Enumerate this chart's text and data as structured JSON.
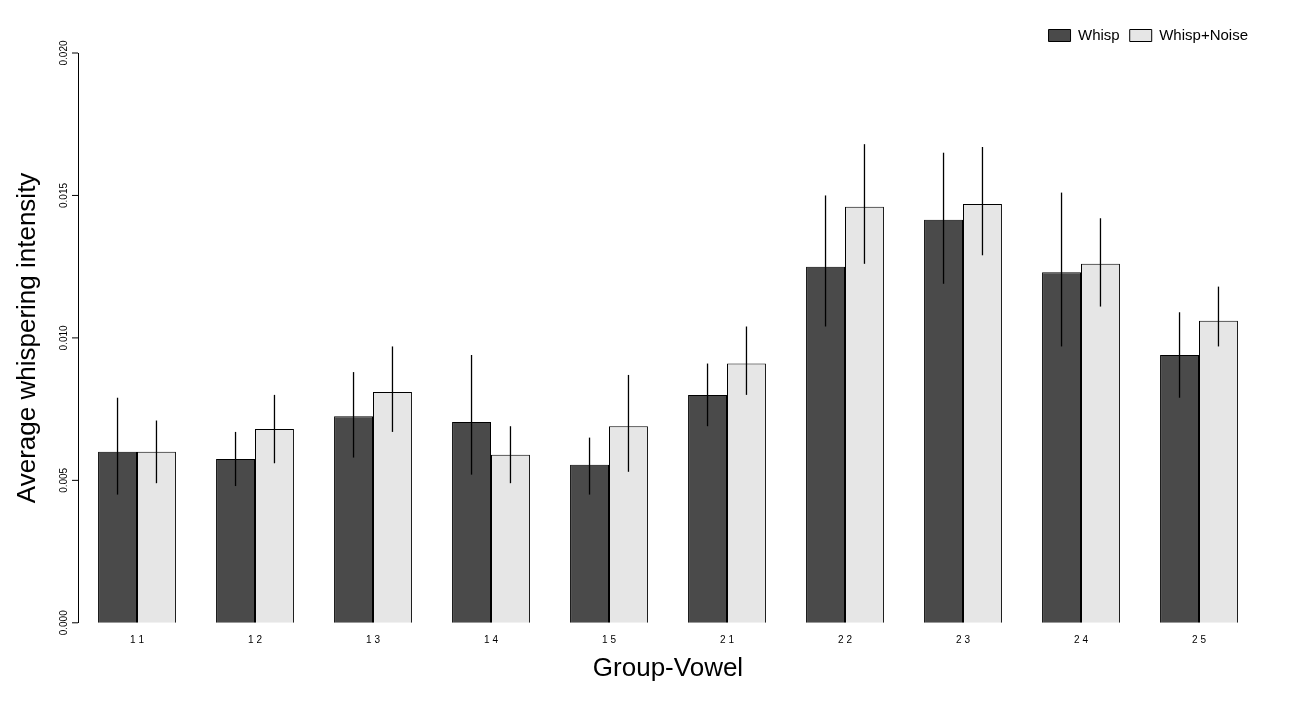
{
  "chart_data": {
    "type": "bar",
    "xlabel": "Group-Vowel",
    "ylabel": "Average whispering intensity",
    "categories": [
      "1 1",
      "1 2",
      "1 3",
      "1 4",
      "1 5",
      "2 1",
      "2 2",
      "2 3",
      "2 4",
      "2 5"
    ],
    "series": [
      {
        "name": "Whisp",
        "color": "#4a4a4a",
        "values": [
          0.006,
          0.00575,
          0.00725,
          0.00705,
          0.00555,
          0.008,
          0.0125,
          0.01415,
          0.0123,
          0.0094
        ],
        "errors": [
          [
            0.0045,
            0.0079
          ],
          [
            0.0048,
            0.0067
          ],
          [
            0.0058,
            0.0088
          ],
          [
            0.0052,
            0.0094
          ],
          [
            0.0045,
            0.0065
          ],
          [
            0.0069,
            0.0091
          ],
          [
            0.0104,
            0.015
          ],
          [
            0.0119,
            0.0165
          ],
          [
            0.0097,
            0.0151
          ],
          [
            0.0079,
            0.0109
          ]
        ]
      },
      {
        "name": "Whisp+Noise",
        "color": "#e6e6e6",
        "values": [
          0.006,
          0.0068,
          0.0081,
          0.0059,
          0.0069,
          0.0091,
          0.0146,
          0.0147,
          0.0126,
          0.0106
        ],
        "errors": [
          [
            0.0049,
            0.0071
          ],
          [
            0.0056,
            0.008
          ],
          [
            0.0067,
            0.0097
          ],
          [
            0.0049,
            0.0069
          ],
          [
            0.0053,
            0.0087
          ],
          [
            0.008,
            0.0104
          ],
          [
            0.0126,
            0.0168
          ],
          [
            0.0129,
            0.0167
          ],
          [
            0.0111,
            0.0142
          ],
          [
            0.0097,
            0.0118
          ]
        ]
      }
    ],
    "ylim": [
      0,
      0.02
    ],
    "yticks": [
      {
        "value": 0,
        "label": "0.000"
      },
      {
        "value": 0.005,
        "label": "0.005"
      },
      {
        "value": 0.01,
        "label": "0.010"
      },
      {
        "value": 0.015,
        "label": "0.015"
      },
      {
        "value": 0.02,
        "label": "0.020"
      }
    ],
    "grid": false,
    "legend": "top right"
  }
}
